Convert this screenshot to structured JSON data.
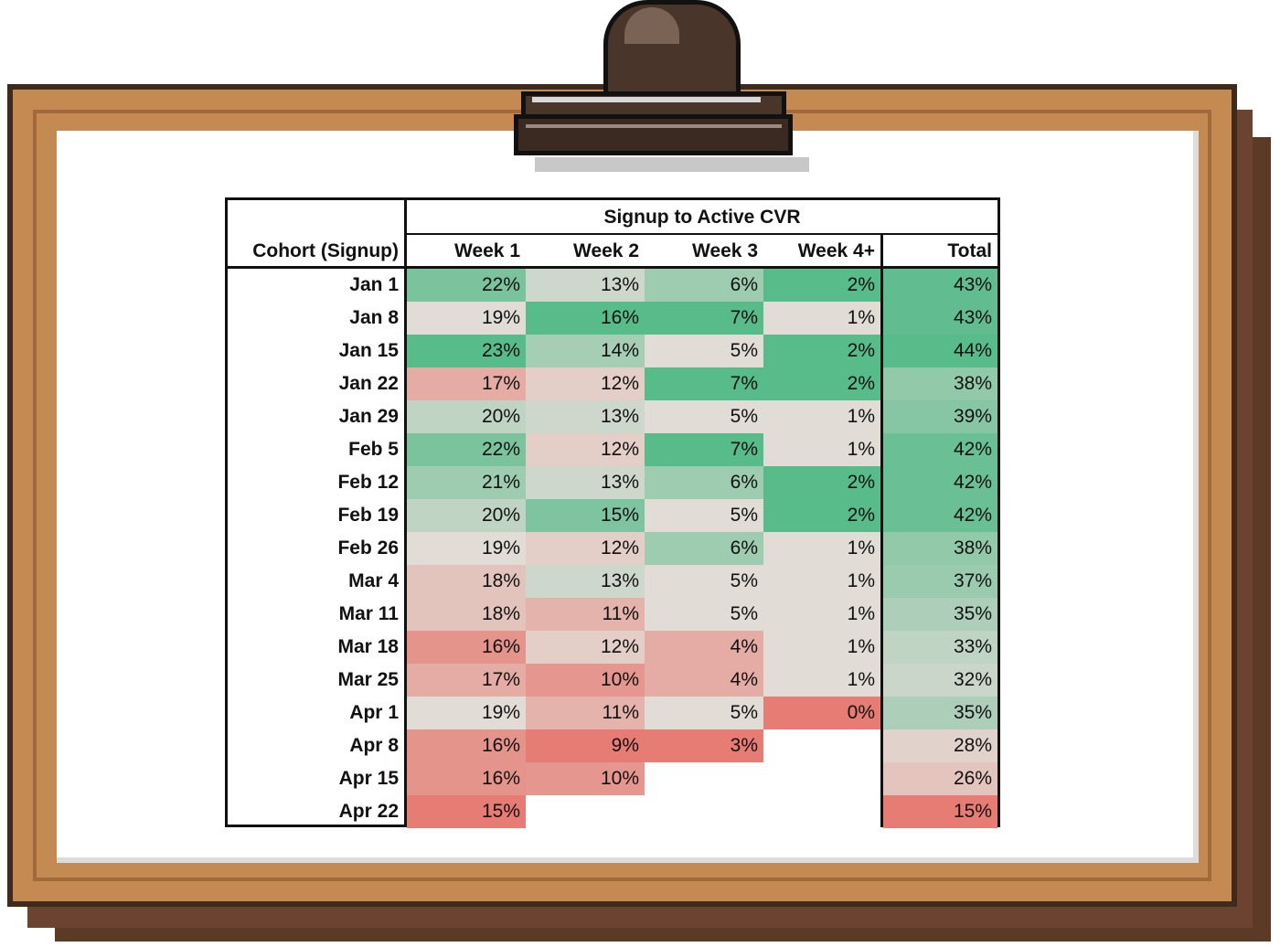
{
  "chart_data": {
    "type": "table",
    "title": "Signup to Active CVR",
    "row_header": "Cohort (Signup)",
    "columns": [
      "Week 1",
      "Week 2",
      "Week 3",
      "Week 4+",
      "Total"
    ],
    "rows": [
      {
        "cohort": "Jan 1",
        "values": [
          "22%",
          "13%",
          "6%",
          "2%",
          "43%"
        ]
      },
      {
        "cohort": "Jan 8",
        "values": [
          "19%",
          "16%",
          "7%",
          "1%",
          "43%"
        ]
      },
      {
        "cohort": "Jan 15",
        "values": [
          "23%",
          "14%",
          "5%",
          "2%",
          "44%"
        ]
      },
      {
        "cohort": "Jan 22",
        "values": [
          "17%",
          "12%",
          "7%",
          "2%",
          "38%"
        ]
      },
      {
        "cohort": "Jan 29",
        "values": [
          "20%",
          "13%",
          "5%",
          "1%",
          "39%"
        ]
      },
      {
        "cohort": "Feb 5",
        "values": [
          "22%",
          "12%",
          "7%",
          "1%",
          "42%"
        ]
      },
      {
        "cohort": "Feb 12",
        "values": [
          "21%",
          "13%",
          "6%",
          "2%",
          "42%"
        ]
      },
      {
        "cohort": "Feb 19",
        "values": [
          "20%",
          "15%",
          "5%",
          "2%",
          "42%"
        ]
      },
      {
        "cohort": "Feb 26",
        "values": [
          "19%",
          "12%",
          "6%",
          "1%",
          "38%"
        ]
      },
      {
        "cohort": "Mar 4",
        "values": [
          "18%",
          "13%",
          "5%",
          "1%",
          "37%"
        ]
      },
      {
        "cohort": "Mar 11",
        "values": [
          "18%",
          "11%",
          "5%",
          "1%",
          "35%"
        ]
      },
      {
        "cohort": "Mar 18",
        "values": [
          "16%",
          "12%",
          "4%",
          "1%",
          "33%"
        ]
      },
      {
        "cohort": "Mar 25",
        "values": [
          "17%",
          "10%",
          "4%",
          "1%",
          "32%"
        ]
      },
      {
        "cohort": "Apr 1",
        "values": [
          "19%",
          "11%",
          "5%",
          "0%",
          "35%"
        ]
      },
      {
        "cohort": "Apr 8",
        "values": [
          "16%",
          "9%",
          "3%",
          "",
          "28%"
        ]
      },
      {
        "cohort": "Apr 15",
        "values": [
          "16%",
          "10%",
          "",
          "",
          "26%"
        ]
      },
      {
        "cohort": "Apr 22",
        "values": [
          "15%",
          "",
          "",
          "",
          "15%"
        ]
      }
    ],
    "colors": {
      "high": "#57bb8a",
      "mid": "#e2dcd6",
      "low": "#e67c73",
      "empty": "#ffffff"
    }
  }
}
